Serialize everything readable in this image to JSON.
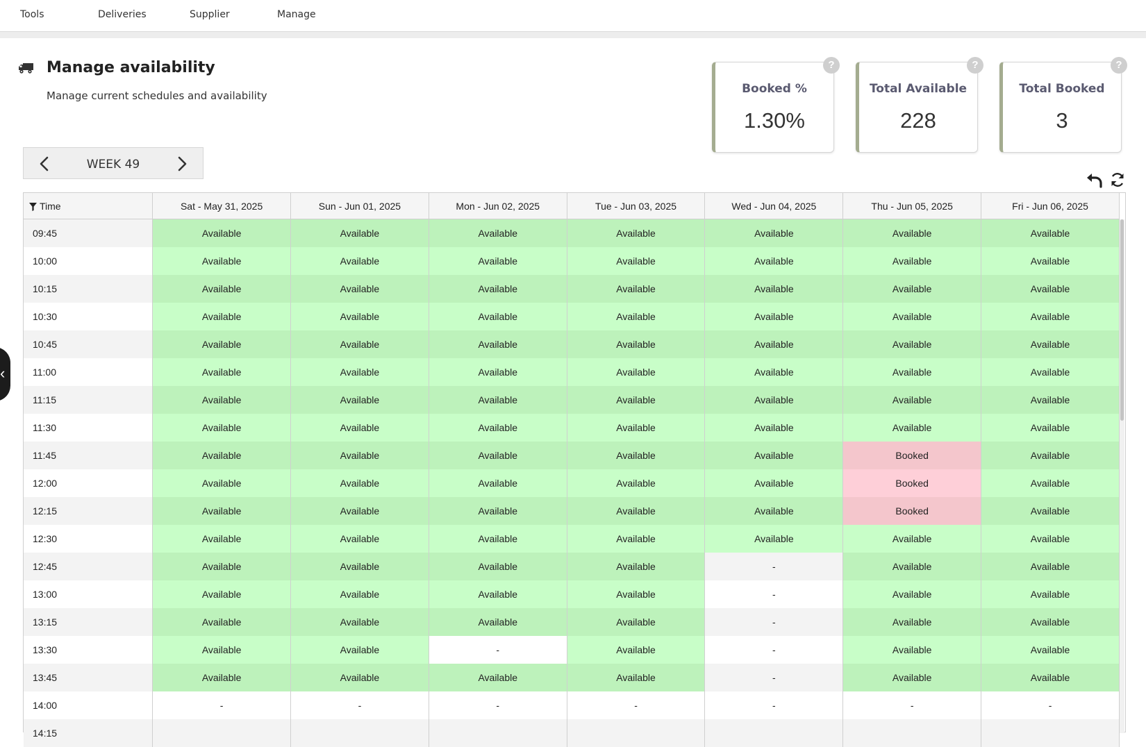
{
  "nav": {
    "items": [
      {
        "label": "Tools"
      },
      {
        "label": "Deliveries"
      },
      {
        "label": "Supplier"
      },
      {
        "label": "Manage"
      }
    ]
  },
  "sidebar_toggle": {
    "icon": "chevron-left-icon",
    "glyph": "‹"
  },
  "header": {
    "icon": "truck-icon",
    "title": "Manage availability",
    "subtitle": "Manage current schedules and availability"
  },
  "stats": [
    {
      "label": "Booked %",
      "value": "1.30%",
      "help": "?"
    },
    {
      "label": "Total Available",
      "value": "228",
      "help": "?"
    },
    {
      "label": "Total Booked",
      "value": "3",
      "help": "?"
    }
  ],
  "week_nav": {
    "label": "WEEK 49"
  },
  "table": {
    "time_header": "Time",
    "days": [
      "Sat - May 31, 2025",
      "Sun - Jun 01, 2025",
      "Mon - Jun 02, 2025",
      "Tue - Jun 03, 2025",
      "Wed - Jun 04, 2025",
      "Thu - Jun 05, 2025",
      "Fri - Jun 06, 2025"
    ],
    "rows": [
      {
        "time": "09:45",
        "cells": [
          "Available",
          "Available",
          "Available",
          "Available",
          "Available",
          "Available",
          "Available"
        ]
      },
      {
        "time": "10:00",
        "cells": [
          "Available",
          "Available",
          "Available",
          "Available",
          "Available",
          "Available",
          "Available"
        ]
      },
      {
        "time": "10:15",
        "cells": [
          "Available",
          "Available",
          "Available",
          "Available",
          "Available",
          "Available",
          "Available"
        ]
      },
      {
        "time": "10:30",
        "cells": [
          "Available",
          "Available",
          "Available",
          "Available",
          "Available",
          "Available",
          "Available"
        ]
      },
      {
        "time": "10:45",
        "cells": [
          "Available",
          "Available",
          "Available",
          "Available",
          "Available",
          "Available",
          "Available"
        ]
      },
      {
        "time": "11:00",
        "cells": [
          "Available",
          "Available",
          "Available",
          "Available",
          "Available",
          "Available",
          "Available"
        ]
      },
      {
        "time": "11:15",
        "cells": [
          "Available",
          "Available",
          "Available",
          "Available",
          "Available",
          "Available",
          "Available"
        ]
      },
      {
        "time": "11:30",
        "cells": [
          "Available",
          "Available",
          "Available",
          "Available",
          "Available",
          "Available",
          "Available"
        ]
      },
      {
        "time": "11:45",
        "cells": [
          "Available",
          "Available",
          "Available",
          "Available",
          "Available",
          "Booked",
          "Available"
        ]
      },
      {
        "time": "12:00",
        "cells": [
          "Available",
          "Available",
          "Available",
          "Available",
          "Available",
          "Booked",
          "Available"
        ]
      },
      {
        "time": "12:15",
        "cells": [
          "Available",
          "Available",
          "Available",
          "Available",
          "Available",
          "Booked",
          "Available"
        ]
      },
      {
        "time": "12:30",
        "cells": [
          "Available",
          "Available",
          "Available",
          "Available",
          "Available",
          "Available",
          "Available"
        ]
      },
      {
        "time": "12:45",
        "cells": [
          "Available",
          "Available",
          "Available",
          "Available",
          "-",
          "Available",
          "Available"
        ]
      },
      {
        "time": "13:00",
        "cells": [
          "Available",
          "Available",
          "Available",
          "Available",
          "-",
          "Available",
          "Available"
        ]
      },
      {
        "time": "13:15",
        "cells": [
          "Available",
          "Available",
          "Available",
          "Available",
          "-",
          "Available",
          "Available"
        ]
      },
      {
        "time": "13:30",
        "cells": [
          "Available",
          "Available",
          "-",
          "Available",
          "-",
          "Available",
          "Available"
        ]
      },
      {
        "time": "13:45",
        "cells": [
          "Available",
          "Available",
          "Available",
          "Available",
          "-",
          "Available",
          "Available"
        ]
      },
      {
        "time": "14:00",
        "cells": [
          "-",
          "-",
          "-",
          "-",
          "-",
          "-",
          "-"
        ]
      },
      {
        "time": "14:15",
        "cells": [
          "",
          "",
          "",
          "",
          "",
          "",
          ""
        ]
      }
    ]
  },
  "colors": {
    "available": "#c8fec8",
    "booked": "#fecfd8",
    "card_accent": "#a4ac90"
  }
}
